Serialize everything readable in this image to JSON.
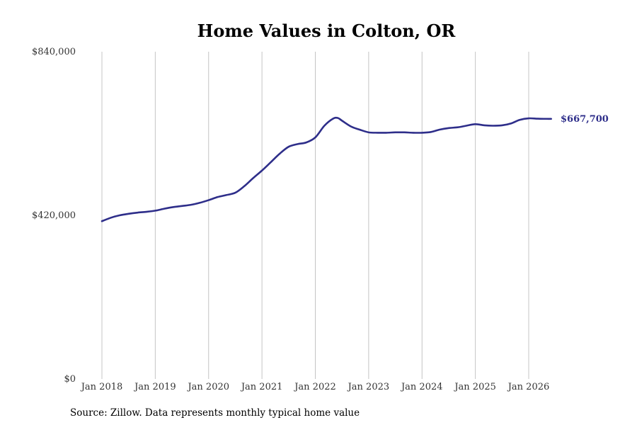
{
  "colors": {
    "series": "#2e2e8a",
    "grid": "#c4c4c4",
    "text": "#333333"
  },
  "chart_data": {
    "type": "line",
    "title": "Home Values in Colton, OR",
    "xlabel": "",
    "ylabel": "",
    "ylim": [
      0,
      840000
    ],
    "y_ticks": [
      {
        "value": 0,
        "label": "$0"
      },
      {
        "value": 420000,
        "label": "$420,000"
      },
      {
        "value": 840000,
        "label": "$840,000"
      }
    ],
    "x_ticks": [
      {
        "value": 2018.0,
        "label": "Jan 2018"
      },
      {
        "value": 2019.0,
        "label": "Jan 2019"
      },
      {
        "value": 2020.0,
        "label": "Jan 2020"
      },
      {
        "value": 2021.0,
        "label": "Jan 2021"
      },
      {
        "value": 2022.0,
        "label": "Jan 2022"
      },
      {
        "value": 2023.0,
        "label": "Jan 2023"
      },
      {
        "value": 2024.0,
        "label": "Jan 2024"
      },
      {
        "value": 2025.0,
        "label": "Jan 2025"
      },
      {
        "value": 2026.0,
        "label": "Jan 2026"
      }
    ],
    "xlim": [
      2018.0,
      2026.42
    ],
    "grid": "vertical",
    "legend": "none",
    "end_label": "$667,700",
    "series": [
      {
        "x": [
          2018.0,
          2018.17,
          2018.33,
          2018.5,
          2018.67,
          2018.83,
          2019.0,
          2019.17,
          2019.33,
          2019.5,
          2019.67,
          2019.83,
          2020.0,
          2020.17,
          2020.33,
          2020.5,
          2020.67,
          2020.83,
          2021.0,
          2021.17,
          2021.33,
          2021.5,
          2021.67,
          2021.83,
          2022.0,
          2022.17,
          2022.33,
          2022.42,
          2022.5,
          2022.67,
          2022.83,
          2023.0,
          2023.17,
          2023.33,
          2023.5,
          2023.67,
          2023.83,
          2024.0,
          2024.17,
          2024.33,
          2024.5,
          2024.67,
          2024.83,
          2025.0,
          2025.17,
          2025.33,
          2025.5,
          2025.67,
          2025.83,
          2026.0,
          2026.17,
          2026.33,
          2026.42
        ],
        "values": [
          405000,
          414000,
          420000,
          424000,
          427000,
          429000,
          432000,
          437000,
          441000,
          444000,
          447000,
          452000,
          459000,
          467000,
          472000,
          478000,
          495000,
          515000,
          535000,
          557000,
          578000,
          596000,
          603000,
          607000,
          620000,
          650000,
          668000,
          670000,
          663000,
          648000,
          640000,
          633000,
          632000,
          632000,
          633000,
          633000,
          632000,
          632000,
          634000,
          640000,
          644000,
          646000,
          650000,
          654000,
          651000,
          650000,
          651000,
          656000,
          665000,
          669000,
          668000,
          667700,
          667700
        ]
      }
    ]
  },
  "source": "Source: Zillow. Data represents monthly typical home value"
}
